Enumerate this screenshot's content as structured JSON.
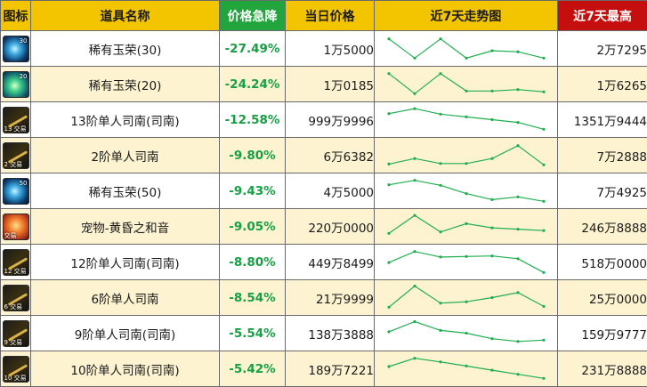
{
  "headers": {
    "icon": "图标",
    "name": "道具名称",
    "drop": "价格急降",
    "price": "当日价格",
    "trend": "近7天走势图",
    "max": "近7天最高"
  },
  "colors": {
    "header_yellow": "#f2c500",
    "header_green": "#21a53c",
    "header_red": "#c50f0f",
    "drop_text": "#16a043",
    "trend_line": "#1fae4f",
    "row_alt": "#fdf3d1"
  },
  "rows": [
    {
      "icon": "blue-orb-icon",
      "icon_style": "orb",
      "badge_top": "30",
      "badge_bottom": "",
      "name": "稀有玉荣(30)",
      "drop": "-27.49%",
      "price": "1万5000",
      "max": "2万7295",
      "trend": [
        0.85,
        0.15,
        0.85,
        0.15,
        0.42,
        0.38,
        0.15
      ]
    },
    {
      "icon": "green-orb-icon",
      "icon_style": "orb-g",
      "badge_top": "20",
      "badge_bottom": "",
      "name": "稀有玉荣(20)",
      "drop": "-24.24%",
      "price": "1万0185",
      "max": "1万6265",
      "trend": [
        0.88,
        0.15,
        0.88,
        0.25,
        0.25,
        0.3,
        0.22
      ]
    },
    {
      "icon": "weapon-stick-icon",
      "icon_style": "stick",
      "badge_top": "",
      "badge_bottom": "13 交易",
      "name": "13阶单人司南(司南)",
      "drop": "-12.58%",
      "price": "999万9996",
      "max": "1351万9444",
      "trend": [
        0.72,
        0.9,
        0.7,
        0.6,
        0.5,
        0.4,
        0.15
      ]
    },
    {
      "icon": "weapon-stick-icon",
      "icon_style": "stick",
      "badge_top": "",
      "badge_bottom": "2 交易",
      "name": "2阶单人司南",
      "drop": "-9.80%",
      "price": "6万6382",
      "max": "7万2888",
      "trend": [
        0.18,
        0.38,
        0.2,
        0.2,
        0.38,
        0.85,
        0.15
      ]
    },
    {
      "icon": "blue-orb-icon",
      "icon_style": "orb",
      "badge_top": "50",
      "badge_bottom": "",
      "name": "稀有玉荣(50)",
      "drop": "-9.43%",
      "price": "4万5000",
      "max": "7万4925",
      "trend": [
        0.72,
        0.88,
        0.7,
        0.4,
        0.18,
        0.28,
        0.12
      ]
    },
    {
      "icon": "pet-sunset-icon",
      "icon_style": "pet",
      "badge_top": "",
      "badge_bottom": "交易",
      "name": "宠物-黄昏之和音",
      "drop": "-9.05%",
      "price": "220万0000",
      "max": "246万8888",
      "trend": [
        0.25,
        0.9,
        0.3,
        0.6,
        0.45,
        0.4,
        0.35
      ]
    },
    {
      "icon": "weapon-stick-icon",
      "icon_style": "stick",
      "badge_top": "",
      "badge_bottom": "12 交易",
      "name": "12阶单人司南(司南)",
      "drop": "-8.80%",
      "price": "449万8499",
      "max": "518万0000",
      "trend": [
        0.48,
        0.88,
        0.68,
        0.7,
        0.72,
        0.62,
        0.12
      ]
    },
    {
      "icon": "weapon-stick-icon",
      "icon_style": "stick",
      "badge_top": "",
      "badge_bottom": "6 交易",
      "name": "6阶单人司南",
      "drop": "-8.54%",
      "price": "21万9999",
      "max": "25万0000",
      "trend": [
        0.15,
        0.92,
        0.3,
        0.35,
        0.5,
        0.68,
        0.18
      ]
    },
    {
      "icon": "weapon-stick-icon",
      "icon_style": "stick",
      "badge_top": "",
      "badge_bottom": "9 交易",
      "name": "9阶单人司南(司南)",
      "drop": "-5.54%",
      "price": "138万3888",
      "max": "159万9777",
      "trend": [
        0.55,
        0.92,
        0.6,
        0.5,
        0.3,
        0.2,
        0.25
      ]
    },
    {
      "icon": "weapon-stick-icon",
      "icon_style": "stick",
      "badge_top": "",
      "badge_bottom": "10 交易",
      "name": "10阶单人司南(司南)",
      "drop": "-5.42%",
      "price": "189万7221",
      "max": "231万8888",
      "trend": [
        0.58,
        0.88,
        0.75,
        0.6,
        0.45,
        0.3,
        0.15
      ]
    }
  ]
}
